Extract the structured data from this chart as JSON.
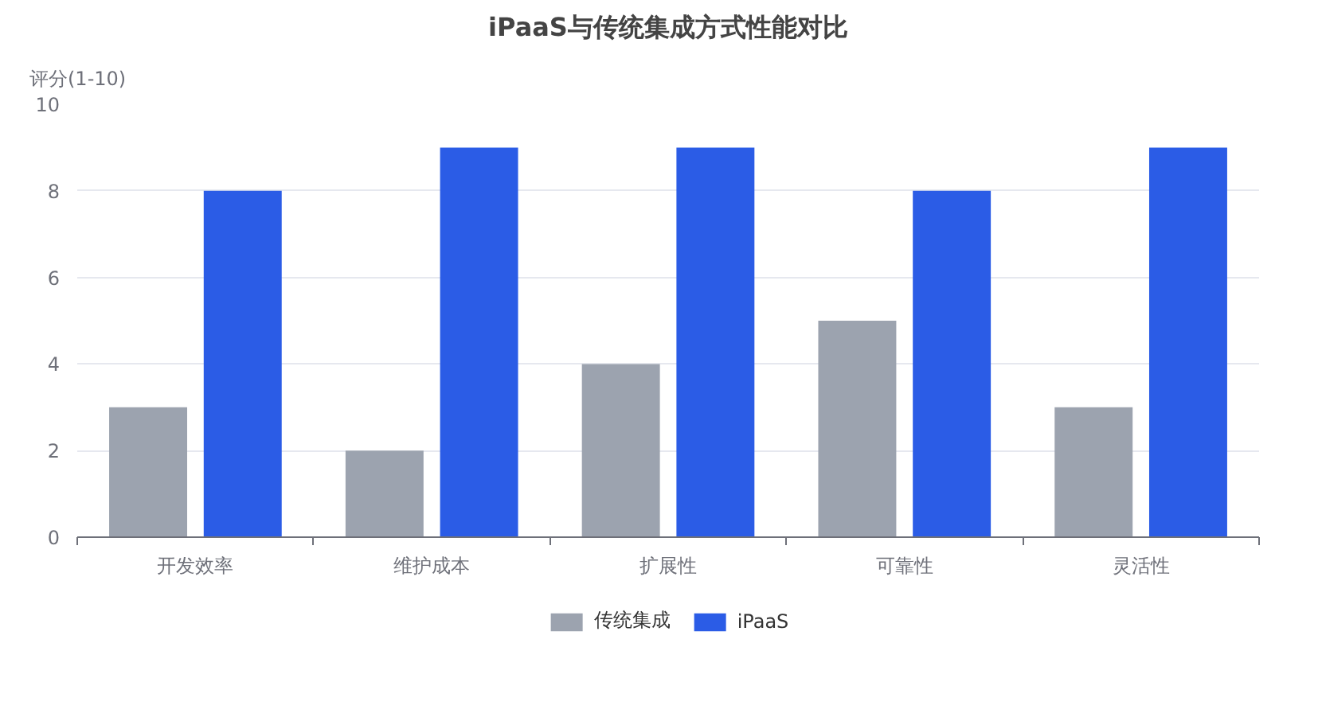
{
  "chart_data": {
    "type": "bar",
    "title": "iPaaS与传统集成方式性能对比",
    "ylabel": "评分(1-10)",
    "categories": [
      "开发效率",
      "维护成本",
      "扩展性",
      "可靠性",
      "灵活性"
    ],
    "series": [
      {
        "name": "传统集成",
        "color": "#9ca3af",
        "values": [
          3,
          2,
          4,
          5,
          3
        ]
      },
      {
        "name": "iPaaS",
        "color": "#2b5ce6",
        "values": [
          8,
          9,
          9,
          8,
          9
        ]
      }
    ],
    "ylim": [
      0,
      10
    ],
    "yticks": [
      0,
      2,
      4,
      6,
      8,
      10
    ],
    "grid": "y",
    "legend": "bottom"
  }
}
